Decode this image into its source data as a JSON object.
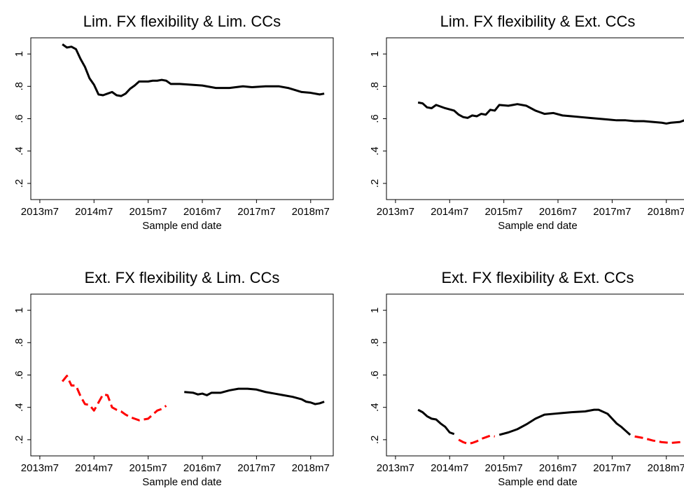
{
  "chart_data": [
    {
      "type": "line",
      "title": "Lim. FX flexibility & Lim. CCs",
      "xlabel": "Sample end date",
      "xlim": [
        "2013m5",
        "2018m12"
      ],
      "xticks": [
        "2013m7",
        "2014m7",
        "2015m7",
        "2016m7",
        "2017m7",
        "2018m7"
      ],
      "ylim": [
        0.1,
        1.1
      ],
      "yticks": [
        {
          "value": 0.2,
          "label": ".2"
        },
        {
          "value": 0.4,
          "label": ".4"
        },
        {
          "value": 0.6,
          "label": ".6"
        },
        {
          "value": 0.8,
          "label": ".8"
        },
        1
      ],
      "series": [
        {
          "color": "#000000",
          "style": "solid",
          "x": [
            "2013m12",
            "2014m1",
            "2014m2",
            "2014m3",
            "2014m4",
            "2014m5",
            "2014m6",
            "2014m7",
            "2014m8",
            "2014m9",
            "2014m10",
            "2014m11",
            "2014m12",
            "2015m1",
            "2015m2",
            "2015m3",
            "2015m4",
            "2015m5",
            "2015m6",
            "2015m7",
            "2015m8",
            "2015m9",
            "2015m10",
            "2015m11",
            "2015m12",
            "2016m1",
            "2016m2",
            "2016m7",
            "2016m10",
            "2017m1",
            "2017m4",
            "2017m6",
            "2017m9",
            "2017m12",
            "2018m2",
            "2018m5",
            "2018m7",
            "2018m9",
            "2018m10"
          ],
          "values": [
            1.06,
            1.04,
            1.045,
            1.03,
            0.97,
            0.92,
            0.85,
            0.81,
            0.75,
            0.745,
            0.755,
            0.765,
            0.745,
            0.74,
            0.755,
            0.785,
            0.805,
            0.83,
            0.83,
            0.83,
            0.835,
            0.835,
            0.84,
            0.835,
            0.815,
            0.815,
            0.815,
            0.805,
            0.79,
            0.79,
            0.8,
            0.795,
            0.8,
            0.8,
            0.79,
            0.765,
            0.76,
            0.75,
            0.755
          ]
        }
      ]
    },
    {
      "type": "line",
      "title": "Lim. FX flexibility & Ext. CCs",
      "xlabel": "Sample end date",
      "xlim": [
        "2013m5",
        "2018m12"
      ],
      "xticks": [
        "2013m7",
        "2014m7",
        "2015m7",
        "2016m7",
        "2017m7",
        "2018m7"
      ],
      "ylim": [
        0.1,
        1.1
      ],
      "yticks": [
        {
          "value": 0.2,
          "label": ".2"
        },
        {
          "value": 0.4,
          "label": ".4"
        },
        {
          "value": 0.6,
          "label": ".6"
        },
        {
          "value": 0.8,
          "label": ".8"
        },
        1
      ],
      "series": [
        {
          "color": "#000000",
          "style": "solid",
          "x": [
            "2013m12",
            "2014m1",
            "2014m2",
            "2014m3",
            "2014m4",
            "2014m6",
            "2014m8",
            "2014m9",
            "2014m10",
            "2014m11",
            "2014m12",
            "2015m1",
            "2015m2",
            "2015m3",
            "2015m4",
            "2015m5",
            "2015m6",
            "2015m8",
            "2015m9",
            "2015m10",
            "2015m12",
            "2016m2",
            "2016m3",
            "2016m4",
            "2016m6",
            "2016m8",
            "2016m10",
            "2016m12",
            "2017m2",
            "2017m4",
            "2017m6",
            "2017m8",
            "2017m10",
            "2017m12",
            "2018m2",
            "2018m4",
            "2018m6",
            "2018m7",
            "2018m8",
            "2018m10",
            "2018m11",
            "2018m12"
          ],
          "values": [
            0.7,
            0.695,
            0.67,
            0.665,
            0.685,
            0.665,
            0.65,
            0.625,
            0.61,
            0.605,
            0.62,
            0.615,
            0.63,
            0.625,
            0.655,
            0.65,
            0.685,
            0.68,
            0.685,
            0.69,
            0.68,
            0.65,
            0.64,
            0.63,
            0.635,
            0.62,
            0.615,
            0.61,
            0.605,
            0.6,
            0.595,
            0.59,
            0.59,
            0.585,
            0.585,
            0.58,
            0.575,
            0.57,
            0.575,
            0.58,
            0.59,
            0.595
          ]
        }
      ]
    },
    {
      "type": "line",
      "title": "Ext. FX flexibility & Lim. CCs",
      "xlabel": "Sample end date",
      "xlim": [
        "2013m5",
        "2018m12"
      ],
      "xticks": [
        "2013m7",
        "2014m7",
        "2015m7",
        "2016m7",
        "2017m7",
        "2018m7"
      ],
      "ylim": [
        0.1,
        1.1
      ],
      "yticks": [
        {
          "value": 0.2,
          "label": ".2"
        },
        {
          "value": 0.4,
          "label": ".4"
        },
        {
          "value": 0.6,
          "label": ".6"
        },
        {
          "value": 0.8,
          "label": ".8"
        },
        1
      ],
      "series": [
        {
          "color": "#ff0000",
          "style": "dashed",
          "x": [
            "2013m12",
            "2014m1",
            "2014m2",
            "2014m3",
            "2014m4",
            "2014m5",
            "2014m6",
            "2014m7",
            "2014m8",
            "2014m9",
            "2014m10",
            "2014m11",
            "2014m12",
            "2015m1",
            "2015m2",
            "2015m3",
            "2015m4",
            "2015m5",
            "2015m6",
            "2015m7",
            "2015m8",
            "2015m9",
            "2015m10",
            "2015m11"
          ],
          "values": [
            0.56,
            0.595,
            0.535,
            0.535,
            0.47,
            0.42,
            0.415,
            0.38,
            0.43,
            0.48,
            0.475,
            0.4,
            0.385,
            0.375,
            0.355,
            0.34,
            0.33,
            0.32,
            0.325,
            0.33,
            0.355,
            0.38,
            0.39,
            0.41
          ]
        },
        {
          "color": "#000000",
          "style": "solid",
          "x": [
            "2016m3",
            "2016m5",
            "2016m6",
            "2016m7",
            "2016m8",
            "2016m9",
            "2016m11",
            "2017m1",
            "2017m3",
            "2017m5",
            "2017m7",
            "2017m9",
            "2017m11",
            "2018m1",
            "2018m3",
            "2018m5",
            "2018m6",
            "2018m7",
            "2018m8",
            "2018m9",
            "2018m10"
          ],
          "values": [
            0.495,
            0.49,
            0.48,
            0.485,
            0.475,
            0.49,
            0.49,
            0.505,
            0.515,
            0.515,
            0.51,
            0.495,
            0.485,
            0.475,
            0.465,
            0.45,
            0.435,
            0.43,
            0.42,
            0.425,
            0.435
          ]
        }
      ]
    },
    {
      "type": "line",
      "title": "Ext. FX flexibility & Ext. CCs",
      "xlabel": "Sample end date",
      "xlim": [
        "2013m5",
        "2018m12"
      ],
      "xticks": [
        "2013m7",
        "2014m7",
        "2015m7",
        "2016m7",
        "2017m7",
        "2018m7"
      ],
      "ylim": [
        0.1,
        1.1
      ],
      "yticks": [
        {
          "value": 0.2,
          "label": ".2"
        },
        {
          "value": 0.4,
          "label": ".4"
        },
        {
          "value": 0.6,
          "label": ".6"
        },
        {
          "value": 0.8,
          "label": ".8"
        },
        1
      ],
      "series": [
        {
          "color": "#000000",
          "style": "solid",
          "x": [
            "2013m12",
            "2014m1",
            "2014m2",
            "2014m3",
            "2014m4",
            "2014m5",
            "2014m6",
            "2014m7",
            "2014m8"
          ],
          "values": [
            0.385,
            0.37,
            0.345,
            0.33,
            0.325,
            0.3,
            0.28,
            0.245,
            0.235
          ]
        },
        {
          "color": "#ff0000",
          "style": "dashed",
          "x": [
            "2014m9",
            "2014m10",
            "2014m11",
            "2014m12",
            "2015m1",
            "2015m2",
            "2015m3",
            "2015m4",
            "2015m5"
          ],
          "values": [
            0.2,
            0.185,
            0.175,
            0.18,
            0.19,
            0.205,
            0.215,
            0.225,
            0.22
          ]
        },
        {
          "color": "#000000",
          "style": "solid",
          "x": [
            "2015m6",
            "2015m8",
            "2015m10",
            "2015m12",
            "2016m2",
            "2016m4",
            "2016m6",
            "2016m8",
            "2016m10",
            "2017m1",
            "2017m3",
            "2017m4",
            "2017m6",
            "2017m7",
            "2017m8",
            "2017m9",
            "2017m10",
            "2017m11"
          ],
          "values": [
            0.23,
            0.245,
            0.265,
            0.295,
            0.33,
            0.355,
            0.36,
            0.365,
            0.37,
            0.375,
            0.385,
            0.385,
            0.36,
            0.33,
            0.3,
            0.28,
            0.255,
            0.23
          ]
        },
        {
          "color": "#ff0000",
          "style": "dashed",
          "x": [
            "2017m12",
            "2018m2",
            "2018m4",
            "2018m6",
            "2018m8",
            "2018m10",
            "2018m12"
          ],
          "values": [
            0.22,
            0.21,
            0.195,
            0.185,
            0.18,
            0.185,
            0.19
          ]
        }
      ]
    }
  ]
}
